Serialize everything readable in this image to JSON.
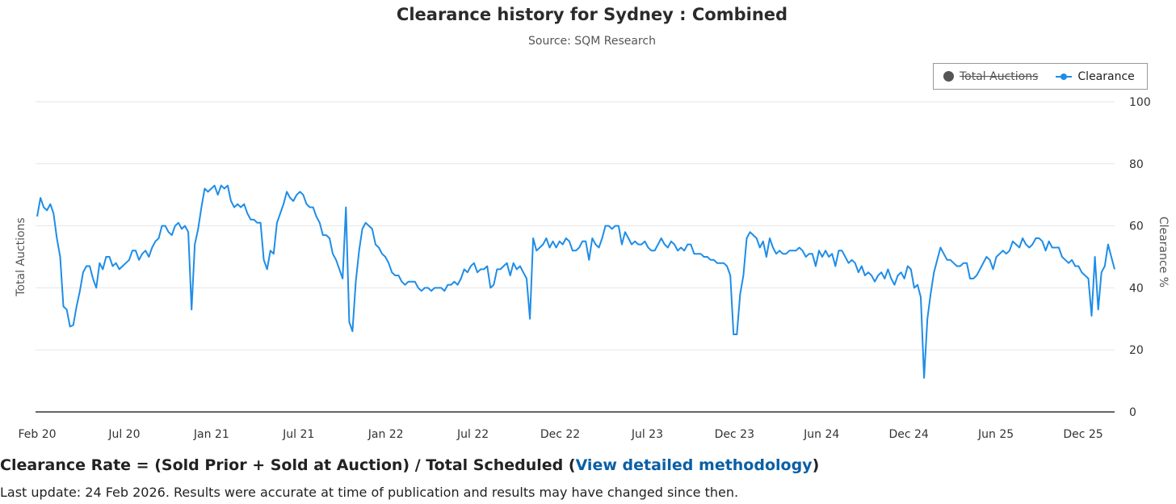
{
  "title": "Clearance history for Sydney : Combined",
  "subtitle": "Source: SQM Research",
  "legend": {
    "total_auctions": "Total Auctions",
    "clearance": "Clearance"
  },
  "formula": {
    "prefix": "Clearance Rate = (Sold Prior + Sold at Auction) / Total Scheduled (",
    "link": "View detailed methodology",
    "suffix": ")"
  },
  "footnote": "Last update: 24 Feb 2026. Results were accurate at time of publication and results may have changed since then.",
  "colors": {
    "clearance": "#1e8de8",
    "total_auctions": "#555555",
    "grid": "#e6e6e6"
  },
  "chart_data": {
    "type": "line",
    "title": "Clearance history for Sydney : Combined",
    "subtitle": "Source: SQM Research",
    "ylabel_left": "Total Auctions",
    "ylabel_right": "Clearance %",
    "y_right_ticks": [
      0,
      20,
      40,
      60,
      80,
      100
    ],
    "ylim": [
      0,
      100
    ],
    "x_ticks": [
      "Feb 20",
      "Jul 20",
      "Jan 21",
      "Jul 21",
      "Jan 22",
      "Jul 22",
      "Dec 22",
      "Jul 23",
      "Dec 23",
      "Jun 24",
      "Dec 24",
      "Jun 25",
      "Dec 25"
    ],
    "legend_position": "top-right",
    "grid": true,
    "series": [
      {
        "name": "Clearance",
        "visible": true,
        "values": [
          63,
          69,
          66,
          65,
          67,
          64,
          56,
          50,
          34,
          33,
          27.5,
          28,
          34,
          39,
          45,
          47,
          47,
          43,
          40,
          48,
          46,
          50,
          50,
          47,
          48,
          46,
          47,
          48,
          49,
          52,
          52,
          49,
          51,
          52,
          50,
          53,
          55,
          56,
          60,
          60,
          58,
          57,
          60,
          61,
          59,
          60,
          58,
          33,
          54,
          59,
          66,
          72,
          71,
          72,
          73,
          70,
          73,
          72,
          73,
          68,
          66,
          67,
          66,
          67,
          64,
          62,
          62,
          61,
          61,
          49,
          46,
          52,
          51,
          61,
          64,
          67,
          71,
          69,
          68,
          70,
          71,
          70,
          67,
          66,
          66,
          63,
          61,
          57,
          57,
          56,
          51,
          49,
          46,
          43,
          66,
          29,
          26,
          42,
          52,
          59,
          61,
          60,
          59,
          54,
          53,
          51,
          50,
          48,
          45,
          44,
          44,
          42,
          41,
          42,
          42,
          42,
          40,
          39,
          40,
          40,
          39,
          40,
          40,
          40,
          39,
          41,
          41,
          42,
          41,
          43,
          46,
          45,
          47,
          48,
          45,
          46,
          46,
          47,
          40,
          41,
          46,
          46,
          47,
          48,
          44,
          48,
          46,
          47,
          45,
          43,
          30,
          56,
          52,
          53,
          54,
          56,
          53,
          55,
          53,
          55,
          54,
          56,
          55,
          52,
          52,
          53,
          55,
          55,
          49,
          56,
          54,
          53,
          56,
          60,
          60,
          59,
          60,
          60,
          54,
          58,
          56,
          54,
          55,
          54,
          54,
          55,
          53,
          52,
          52,
          54,
          56,
          54,
          53,
          55,
          54,
          52,
          53,
          52,
          54,
          54,
          51,
          51,
          51,
          50,
          50,
          49,
          49,
          48,
          48,
          48,
          47,
          44,
          25,
          25,
          38,
          44,
          56,
          58,
          57,
          56,
          53,
          55,
          50,
          56,
          53,
          51,
          52,
          51,
          51,
          52,
          52,
          52,
          53,
          52,
          50,
          51,
          51,
          47,
          52,
          50,
          52,
          50,
          51,
          47,
          52,
          52,
          50,
          48,
          49,
          48,
          45,
          47,
          44,
          45,
          44,
          42,
          44,
          45,
          43,
          46,
          43,
          41,
          44,
          45,
          43,
          47,
          46,
          40,
          41,
          37,
          11,
          30,
          38,
          45,
          49,
          53,
          51,
          49,
          49,
          48,
          47,
          47,
          48,
          48,
          43,
          43,
          44,
          46,
          48,
          50,
          49,
          46,
          50,
          51,
          52,
          51,
          52,
          55,
          54,
          53,
          56,
          54,
          53,
          54,
          56,
          56,
          55,
          52,
          55,
          53,
          53,
          53,
          50,
          49,
          48,
          49,
          47,
          47,
          45,
          44,
          43,
          31,
          50,
          33,
          45,
          47,
          54,
          50,
          46
        ]
      },
      {
        "name": "Total Auctions",
        "visible": false,
        "values": []
      }
    ]
  }
}
